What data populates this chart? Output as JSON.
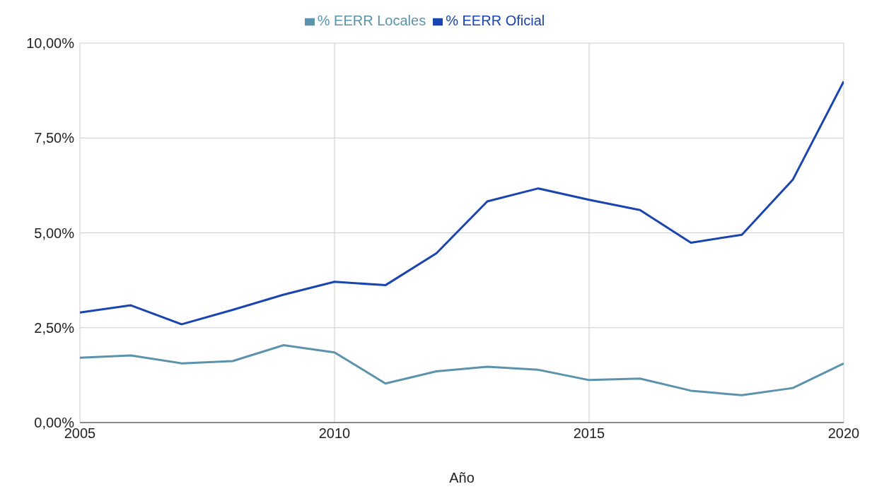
{
  "chart_data": {
    "type": "line",
    "xlabel": "Año",
    "x": [
      2005,
      2006,
      2007,
      2008,
      2009,
      2010,
      2011,
      2012,
      2013,
      2014,
      2015,
      2016,
      2017,
      2018,
      2019,
      2020
    ],
    "series": [
      {
        "name": "% EERR Locales",
        "color": "#5b93ad",
        "values": [
          1.71,
          1.77,
          1.56,
          1.62,
          2.04,
          1.85,
          1.03,
          1.35,
          1.47,
          1.39,
          1.12,
          1.16,
          0.84,
          0.72,
          0.91,
          1.56
        ]
      },
      {
        "name": "% EERR Oficial",
        "color": "#1a45b0",
        "values": [
          2.9,
          3.09,
          2.59,
          2.97,
          3.37,
          3.71,
          3.62,
          4.46,
          5.83,
          6.17,
          5.87,
          5.6,
          4.74,
          4.95,
          6.4,
          8.99
        ]
      }
    ],
    "xlim": [
      2005,
      2020
    ],
    "xticks": [
      2005,
      2010,
      2015,
      2020
    ],
    "ylim": [
      0,
      10
    ],
    "yticks": [
      {
        "value": 0,
        "label": "0,00%"
      },
      {
        "value": 2.5,
        "label": "2,50%"
      },
      {
        "value": 5,
        "label": "5,00%"
      },
      {
        "value": 7.5,
        "label": "7,50%"
      },
      {
        "value": 10,
        "label": "10,00%"
      }
    ],
    "grid": true,
    "legend": "top",
    "marker": "none",
    "line_style": "solid"
  }
}
